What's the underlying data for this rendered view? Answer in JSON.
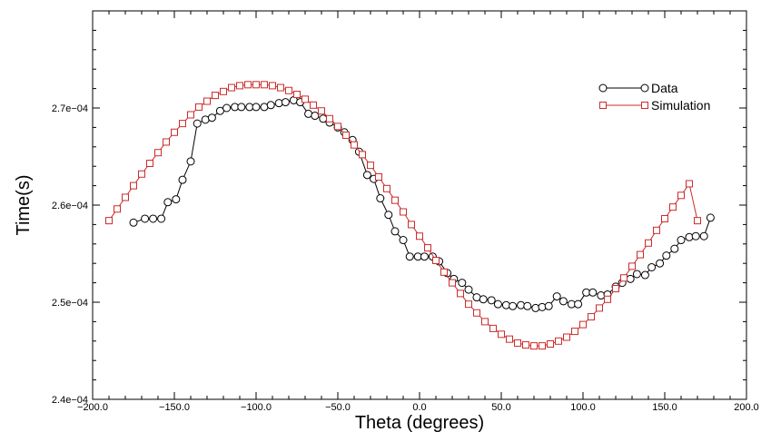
{
  "chart_data": {
    "type": "line",
    "title": "",
    "xlabel": "Theta (degrees)",
    "ylabel": "Time(s)",
    "xlim": [
      -200,
      200
    ],
    "ylim": [
      0.00024,
      0.00028
    ],
    "grid": false,
    "legend_position": "top-right",
    "x_ticks": [
      {
        "value": -200,
        "label": "−200.0"
      },
      {
        "value": -150,
        "label": "−150.0"
      },
      {
        "value": -100,
        "label": "−100.0"
      },
      {
        "value": -50,
        "label": "−50.0"
      },
      {
        "value": 0,
        "label": "0.0"
      },
      {
        "value": 50,
        "label": "50.0"
      },
      {
        "value": 100,
        "label": "100.0"
      },
      {
        "value": 150,
        "label": "150.0"
      },
      {
        "value": 200,
        "label": "200.0"
      }
    ],
    "y_ticks": [
      {
        "value": 0.00024,
        "label": "2.4e−04"
      },
      {
        "value": 0.00025,
        "label": "2.5e−04"
      },
      {
        "value": 0.00026,
        "label": "2.6e−04"
      },
      {
        "value": 0.00027,
        "label": "2.7e−04"
      }
    ],
    "series": [
      {
        "name": "Data",
        "color": "#000000",
        "marker": "circle",
        "x": [
          -175,
          -168,
          -163,
          -158,
          -154,
          -149,
          -145,
          -140,
          -136,
          -131,
          -127,
          -122,
          -118,
          -113,
          -109,
          -104,
          -100,
          -95,
          -91,
          -86,
          -82,
          -77,
          -73,
          -68,
          -64,
          -59,
          -55,
          -50,
          -46,
          -41,
          -37,
          -32,
          -28,
          -24,
          -19,
          -15,
          -10,
          -6,
          -1,
          3,
          8,
          12,
          17,
          21,
          26,
          30,
          35,
          39,
          44,
          48,
          53,
          57,
          62,
          66,
          71,
          75,
          79,
          84,
          88,
          93,
          97,
          102,
          106,
          111,
          115,
          120,
          124,
          129,
          133,
          138,
          142,
          147,
          151,
          156,
          160,
          165,
          169,
          174,
          178
        ],
        "y": [
          0.0002582,
          0.0002586,
          0.0002586,
          0.0002586,
          0.0002603,
          0.0002606,
          0.0002626,
          0.0002645,
          0.0002684,
          0.0002688,
          0.000269,
          0.0002697,
          0.00027,
          0.0002701,
          0.0002701,
          0.0002701,
          0.0002701,
          0.0002701,
          0.0002703,
          0.0002705,
          0.0002706,
          0.0002708,
          0.0002706,
          0.0002694,
          0.0002692,
          0.0002689,
          0.0002685,
          0.000268,
          0.0002675,
          0.0002667,
          0.0002655,
          0.0002631,
          0.0002627,
          0.0002607,
          0.000259,
          0.0002573,
          0.0002564,
          0.0002547,
          0.0002547,
          0.0002547,
          0.0002547,
          0.0002542,
          0.000253,
          0.0002524,
          0.000252,
          0.0002513,
          0.0002505,
          0.0002503,
          0.0002502,
          0.0002498,
          0.0002497,
          0.0002496,
          0.0002497,
          0.0002496,
          0.0002494,
          0.0002495,
          0.0002496,
          0.0002506,
          0.0002501,
          0.0002498,
          0.0002498,
          0.000251,
          0.000251,
          0.0002507,
          0.0002508,
          0.0002516,
          0.000252,
          0.0002524,
          0.0002529,
          0.0002528,
          0.0002536,
          0.000254,
          0.0002548,
          0.0002555,
          0.0002564,
          0.0002567,
          0.0002568,
          0.0002568,
          0.0002587
        ]
      },
      {
        "name": "Simulation",
        "color": "#cc2b2b",
        "marker": "square",
        "x": [
          -190,
          -185,
          -180,
          -175,
          -170,
          -165,
          -160,
          -155,
          -150,
          -145,
          -140,
          -135,
          -130,
          -125,
          -120,
          -115,
          -110,
          -105,
          -100,
          -95,
          -90,
          -85,
          -80,
          -75,
          -70,
          -65,
          -60,
          -55,
          -50,
          -45,
          -40,
          -35,
          -30,
          -25,
          -20,
          -15,
          -10,
          -5,
          0,
          5,
          10,
          15,
          20,
          25,
          30,
          35,
          40,
          45,
          50,
          55,
          60,
          65,
          70,
          75,
          80,
          85,
          90,
          95,
          100,
          105,
          110,
          115,
          120,
          125,
          130,
          135,
          140,
          145,
          150,
          155,
          160,
          165,
          170
        ],
        "y": [
          0.0002584,
          0.0002596,
          0.0002608,
          0.000262,
          0.0002632,
          0.0002643,
          0.0002654,
          0.0002665,
          0.0002675,
          0.0002684,
          0.0002693,
          0.0002701,
          0.0002707,
          0.0002713,
          0.0002717,
          0.0002721,
          0.0002723,
          0.0002724,
          0.0002724,
          0.0002724,
          0.0002723,
          0.0002721,
          0.0002718,
          0.0002714,
          0.0002709,
          0.0002703,
          0.0002697,
          0.0002689,
          0.0002681,
          0.0002672,
          0.0002662,
          0.0002652,
          0.0002641,
          0.0002629,
          0.0002617,
          0.0002605,
          0.0002593,
          0.000258,
          0.0002568,
          0.0002556,
          0.0002543,
          0.0002531,
          0.000252,
          0.0002509,
          0.0002498,
          0.0002489,
          0.000248,
          0.0002473,
          0.0002467,
          0.0002462,
          0.0002458,
          0.0002456,
          0.0002455,
          0.0002455,
          0.0002457,
          0.000246,
          0.0002464,
          0.000247,
          0.0002477,
          0.0002485,
          0.0002494,
          0.0002503,
          0.0002514,
          0.0002525,
          0.0002537,
          0.0002549,
          0.0002561,
          0.0002574,
          0.0002586,
          0.0002598,
          0.000261,
          0.0002622,
          0.0002584
        ]
      }
    ]
  }
}
